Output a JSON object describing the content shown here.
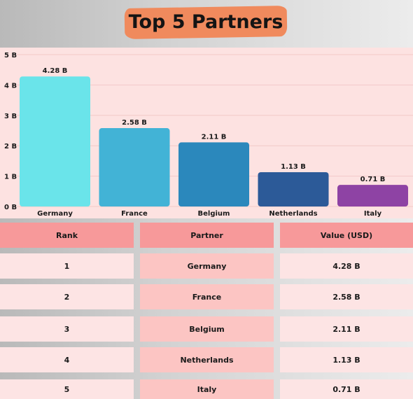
{
  "title": "Top 5 Partners",
  "colors": {
    "bars": [
      "#6ae4ea",
      "#42b3d6",
      "#2b88bc",
      "#2c5a98",
      "#8e43a4"
    ],
    "title_brush": "#f08a5d",
    "chart_bg": "#fde2e1",
    "table_header": "#f7999a"
  },
  "chart_data": {
    "type": "bar",
    "categories": [
      "Germany",
      "France",
      "Belgium",
      "Netherlands",
      "Italy"
    ],
    "values": [
      4.28,
      2.58,
      2.11,
      1.13,
      0.71
    ],
    "data_labels": [
      "4.28 B",
      "2.58 B",
      "2.11 B",
      "1.13 B",
      "0.71 B"
    ],
    "y_ticks": [
      0,
      1,
      2,
      3,
      4,
      5
    ],
    "y_tick_labels": [
      "0 B",
      "1 B",
      "2 B",
      "3 B",
      "4 B",
      "5 B"
    ],
    "ylim": [
      0,
      5
    ],
    "grid": true,
    "legend": false
  },
  "table": {
    "headers": [
      "Rank",
      "Partner",
      "Value (USD)"
    ],
    "rows": [
      [
        "1",
        "Germany",
        "4.28 B"
      ],
      [
        "2",
        "France",
        "2.58 B"
      ],
      [
        "3",
        "Belgium",
        "2.11 B"
      ],
      [
        "4",
        "Netherlands",
        "1.13 B"
      ],
      [
        "5",
        "Italy",
        "0.71 B"
      ]
    ]
  }
}
